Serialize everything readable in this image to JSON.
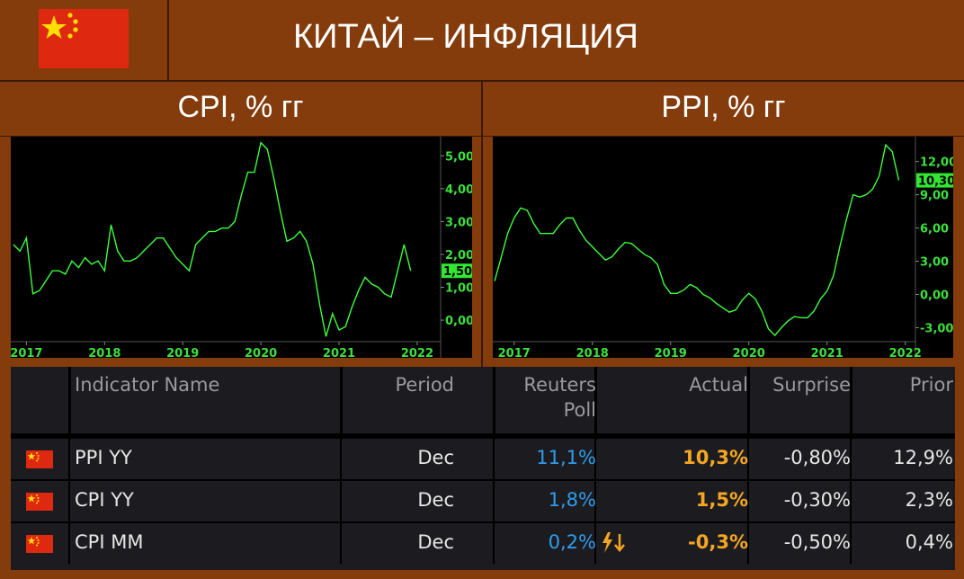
{
  "header": {
    "title": "КИТАЙ – ИНФЛЯЦИЯ"
  },
  "chart_data": [
    {
      "type": "line",
      "title": "CPI, % гг",
      "color": "#3cff3c",
      "x": [
        2016.833,
        2016.917,
        2017.0,
        2017.083,
        2017.167,
        2017.25,
        2017.333,
        2017.417,
        2017.5,
        2017.583,
        2017.667,
        2017.75,
        2017.833,
        2017.917,
        2018.0,
        2018.083,
        2018.167,
        2018.25,
        2018.333,
        2018.417,
        2018.5,
        2018.583,
        2018.667,
        2018.75,
        2018.833,
        2018.917,
        2019.0,
        2019.083,
        2019.167,
        2019.25,
        2019.333,
        2019.417,
        2019.5,
        2019.583,
        2019.667,
        2019.75,
        2019.833,
        2019.917,
        2020.0,
        2020.083,
        2020.167,
        2020.25,
        2020.333,
        2020.417,
        2020.5,
        2020.583,
        2020.667,
        2020.75,
        2020.833,
        2020.917,
        2021.0,
        2021.083,
        2021.167,
        2021.25,
        2021.333,
        2021.417,
        2021.5,
        2021.583,
        2021.667,
        2021.75,
        2021.833,
        2021.917
      ],
      "values": [
        2.3,
        2.1,
        2.5,
        0.8,
        0.9,
        1.2,
        1.5,
        1.5,
        1.4,
        1.8,
        1.6,
        1.9,
        1.7,
        1.8,
        1.5,
        2.9,
        2.1,
        1.8,
        1.8,
        1.9,
        2.1,
        2.3,
        2.5,
        2.5,
        2.2,
        1.9,
        1.7,
        1.5,
        2.3,
        2.5,
        2.7,
        2.7,
        2.8,
        2.8,
        3.0,
        3.8,
        4.5,
        4.5,
        5.4,
        5.2,
        4.3,
        3.3,
        2.4,
        2.5,
        2.7,
        2.4,
        1.7,
        0.5,
        -0.5,
        0.2,
        -0.3,
        -0.2,
        0.4,
        0.9,
        1.3,
        1.1,
        1.0,
        0.8,
        0.7,
        1.5,
        2.3,
        1.5
      ],
      "xlim": [
        2016.8,
        2022.3
      ],
      "xticks": [
        2017,
        2018,
        2019,
        2020,
        2021,
        2022
      ],
      "ylim": [
        -0.6,
        5.5
      ],
      "yticks": [
        {
          "value": 0,
          "label": "0,00"
        },
        {
          "value": 1,
          "label": "1,00"
        },
        {
          "value": 2,
          "label": "2,00"
        },
        {
          "value": 3,
          "label": "3,00"
        },
        {
          "value": 4,
          "label": "4,00"
        },
        {
          "value": 5,
          "label": "5,00"
        }
      ],
      "last_value": {
        "value": 1.5,
        "label": "1,50"
      }
    },
    {
      "type": "line",
      "title": "PPI, % гг",
      "color": "#3cff3c",
      "x": [
        2016.75,
        2016.833,
        2016.917,
        2017.0,
        2017.083,
        2017.167,
        2017.25,
        2017.333,
        2017.417,
        2017.5,
        2017.583,
        2017.667,
        2017.75,
        2017.833,
        2017.917,
        2018.0,
        2018.083,
        2018.167,
        2018.25,
        2018.333,
        2018.417,
        2018.5,
        2018.583,
        2018.667,
        2018.75,
        2018.833,
        2018.917,
        2019.0,
        2019.083,
        2019.167,
        2019.25,
        2019.333,
        2019.417,
        2019.5,
        2019.583,
        2019.667,
        2019.75,
        2019.833,
        2019.917,
        2020.0,
        2020.083,
        2020.167,
        2020.25,
        2020.333,
        2020.417,
        2020.5,
        2020.583,
        2020.667,
        2020.75,
        2020.833,
        2020.917,
        2021.0,
        2021.083,
        2021.167,
        2021.25,
        2021.333,
        2021.417,
        2021.5,
        2021.583,
        2021.667,
        2021.75,
        2021.833,
        2021.917
      ],
      "values": [
        1.2,
        3.3,
        5.5,
        6.9,
        7.8,
        7.6,
        6.4,
        5.5,
        5.5,
        5.5,
        6.3,
        6.9,
        6.9,
        5.8,
        4.9,
        4.3,
        3.7,
        3.1,
        3.4,
        4.1,
        4.7,
        4.6,
        4.1,
        3.6,
        3.3,
        2.7,
        0.9,
        0.1,
        0.1,
        0.4,
        0.9,
        0.6,
        0.0,
        -0.3,
        -0.8,
        -1.2,
        -1.6,
        -1.4,
        -0.5,
        0.1,
        -0.4,
        -1.5,
        -3.1,
        -3.7,
        -3.0,
        -2.4,
        -2.0,
        -2.1,
        -2.1,
        -1.5,
        -0.4,
        0.3,
        1.7,
        4.4,
        6.8,
        9.0,
        8.8,
        9.0,
        9.5,
        10.7,
        13.5,
        12.9,
        10.3
      ],
      "xlim": [
        2016.75,
        2022.13
      ],
      "xticks": [
        2017,
        2018,
        2019,
        2020,
        2021,
        2022
      ],
      "ylim": [
        -4.1,
        14
      ],
      "yticks": [
        {
          "value": -3,
          "label": "-3,00"
        },
        {
          "value": 0,
          "label": "0,00"
        },
        {
          "value": 3,
          "label": "3,00"
        },
        {
          "value": 6,
          "label": "6,00"
        },
        {
          "value": 9,
          "label": "9,00"
        },
        {
          "value": 12,
          "label": "12,00"
        }
      ],
      "last_value": {
        "value": 10.3,
        "label": "10,30"
      }
    }
  ],
  "table": {
    "columns": [
      "Indicator Name",
      "Period",
      "Reuters Poll",
      "Actual",
      "Surprise",
      "Prior"
    ],
    "rows": [
      [
        "PPI YY",
        "Dec",
        "11,1%",
        "10,3%",
        "-0,80%",
        "12,9%"
      ],
      [
        "CPI YY",
        "Dec",
        "1,8%",
        "1,5%",
        "-0,30%",
        "2,3%"
      ],
      [
        "CPI MM",
        "Dec",
        "0,2%",
        "-0,3%",
        "-0,50%",
        "0,4%"
      ]
    ]
  }
}
